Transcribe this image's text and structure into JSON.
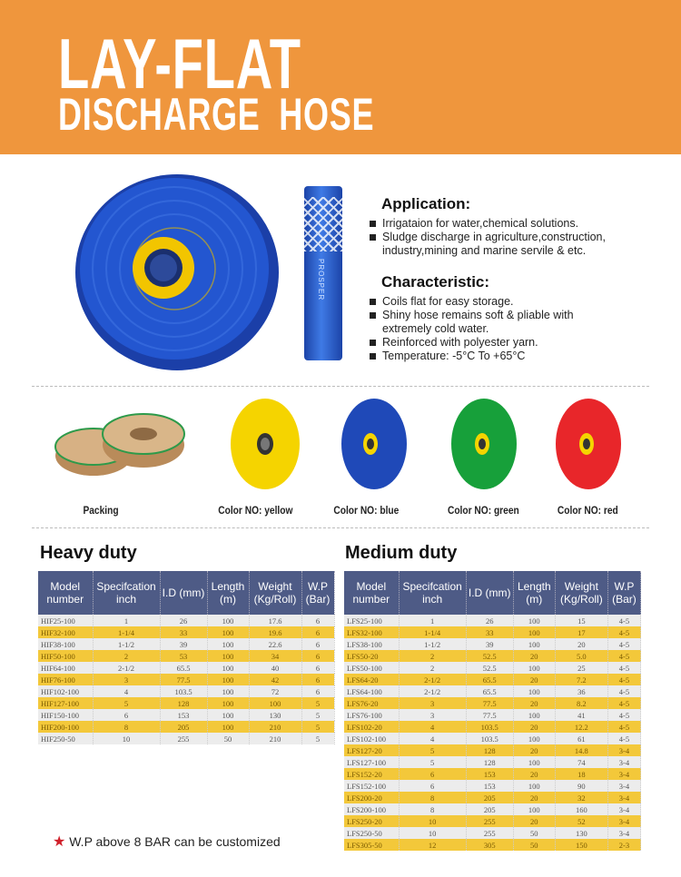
{
  "banner": {
    "title_line1": "LAY-FLAT",
    "title_line2": "DISCHARGE HOSE"
  },
  "hose_brand": "PROSPER",
  "application": {
    "heading": "Application:",
    "items": [
      "Irrigataion for water,chemical solutions.",
      "Sludge discharge in agriculture,construction, industry,mining and marine servile & etc."
    ]
  },
  "characteristic": {
    "heading": "Characteristic:",
    "items": [
      "Coils flat for easy storage.",
      "Shiny hose remains soft & pliable with extremely cold water.",
      "Reinforced with polyester yarn.",
      "Temperature: -5°C To +65°C"
    ]
  },
  "gallery": [
    {
      "label": "Packing"
    },
    {
      "label": "Color NO: yellow",
      "color": "#f5d400"
    },
    {
      "label": "Color NO: blue",
      "color": "#1f49b8"
    },
    {
      "label": "Color NO: green",
      "color": "#17a03a"
    },
    {
      "label": "Color NO: red",
      "color": "#e8262a"
    }
  ],
  "columns": [
    "Model number",
    "Specifcation inch",
    "I.D (mm)",
    "Length (m)",
    "Weight (Kg/Roll)",
    "W.P (Bar)"
  ],
  "heavy_duty": {
    "title": "Heavy duty",
    "rows": [
      [
        "HIF25-100",
        "1",
        "26",
        "100",
        "17.6",
        "6"
      ],
      [
        "HIF32-100",
        "1-1/4",
        "33",
        "100",
        "19.6",
        "6"
      ],
      [
        "HIF38-100",
        "1-1/2",
        "39",
        "100",
        "22.6",
        "6"
      ],
      [
        "HIF50-100",
        "2",
        "53",
        "100",
        "34",
        "6"
      ],
      [
        "HIF64-100",
        "2-1/2",
        "65.5",
        "100",
        "40",
        "6"
      ],
      [
        "HIF76-100",
        "3",
        "77.5",
        "100",
        "42",
        "6"
      ],
      [
        "HIF102-100",
        "4",
        "103.5",
        "100",
        "72",
        "6"
      ],
      [
        "HIF127-100",
        "5",
        "128",
        "100",
        "100",
        "5"
      ],
      [
        "HIF150-100",
        "6",
        "153",
        "100",
        "130",
        "5"
      ],
      [
        "HIF200-100",
        "8",
        "205",
        "100",
        "210",
        "5"
      ],
      [
        "HIF250-50",
        "10",
        "255",
        "50",
        "210",
        "5"
      ]
    ]
  },
  "medium_duty": {
    "title": "Medium duty",
    "rows": [
      [
        "LFS25-100",
        "1",
        "26",
        "100",
        "15",
        "4-5"
      ],
      [
        "LFS32-100",
        "1-1/4",
        "33",
        "100",
        "17",
        "4-5"
      ],
      [
        "LFS38-100",
        "1-1/2",
        "39",
        "100",
        "20",
        "4-5"
      ],
      [
        "LFS50-20",
        "2",
        "52.5",
        "20",
        "5.0",
        "4-5"
      ],
      [
        "LFS50-100",
        "2",
        "52.5",
        "100",
        "25",
        "4-5"
      ],
      [
        "LFS64-20",
        "2-1/2",
        "65.5",
        "20",
        "7.2",
        "4-5"
      ],
      [
        "LFS64-100",
        "2-1/2",
        "65.5",
        "100",
        "36",
        "4-5"
      ],
      [
        "LFS76-20",
        "3",
        "77.5",
        "20",
        "8.2",
        "4-5"
      ],
      [
        "LFS76-100",
        "3",
        "77.5",
        "100",
        "41",
        "4-5"
      ],
      [
        "LFS102-20",
        "4",
        "103.5",
        "20",
        "12.2",
        "4-5"
      ],
      [
        "LFS102-100",
        "4",
        "103.5",
        "100",
        "61",
        "4-5"
      ],
      [
        "LFS127-20",
        "5",
        "128",
        "20",
        "14.8",
        "3-4"
      ],
      [
        "LFS127-100",
        "5",
        "128",
        "100",
        "74",
        "3-4"
      ],
      [
        "LFS152-20",
        "6",
        "153",
        "20",
        "18",
        "3-4"
      ],
      [
        "LFS152-100",
        "6",
        "153",
        "100",
        "90",
        "3-4"
      ],
      [
        "LFS200-20",
        "8",
        "205",
        "20",
        "32",
        "3-4"
      ],
      [
        "LFS200-100",
        "8",
        "205",
        "100",
        "160",
        "3-4"
      ],
      [
        "LFS250-20",
        "10",
        "255",
        "20",
        "52",
        "3-4"
      ],
      [
        "LFS250-50",
        "10",
        "255",
        "50",
        "130",
        "3-4"
      ],
      [
        "LFS305-50",
        "12",
        "305",
        "50",
        "150",
        "2-3"
      ]
    ]
  },
  "note": "W.P above 8 BAR can be customized"
}
